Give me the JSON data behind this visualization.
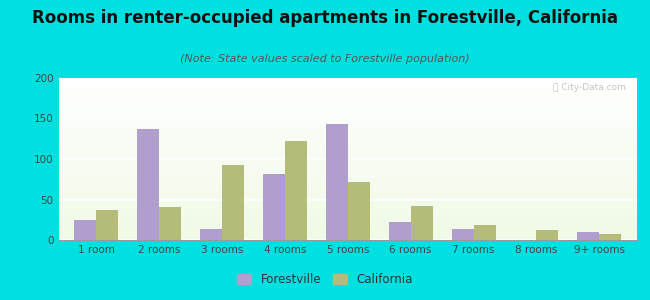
{
  "title": "Rooms in renter-occupied apartments in Forestville, California",
  "subtitle": "(Note: State values scaled to Forestville population)",
  "categories": [
    "1 room",
    "2 rooms",
    "3 rooms",
    "4 rooms",
    "5 rooms",
    "6 rooms",
    "7 rooms",
    "8 rooms",
    "9+ rooms"
  ],
  "forestville": [
    25,
    137,
    14,
    81,
    143,
    22,
    14,
    0,
    10
  ],
  "california": [
    37,
    41,
    93,
    122,
    71,
    42,
    19,
    12,
    8
  ],
  "forestville_color": "#b09fcc",
  "california_color": "#b5bc7a",
  "background_outer": "#00e0e0",
  "ylim": [
    0,
    200
  ],
  "yticks": [
    0,
    50,
    100,
    150,
    200
  ],
  "bar_width": 0.35,
  "title_fontsize": 12,
  "subtitle_fontsize": 8,
  "tick_fontsize": 7.5,
  "legend_fontsize": 8.5
}
